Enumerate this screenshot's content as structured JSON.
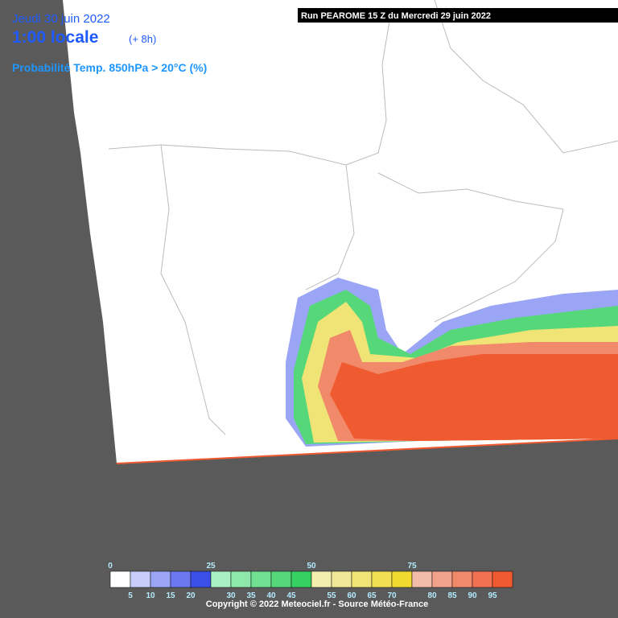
{
  "header": {
    "date": "Jeudi 30 juin 2022",
    "time": "1:00 locale",
    "lead": "(+ 8h)",
    "parameter": "Probabilité Temp. 850hPa > 20°C (%)",
    "run": "Run PEAROME 15 Z du Mercredi 29 juin 2022"
  },
  "legend": {
    "major_labels": [
      0,
      25,
      50,
      75
    ],
    "minor_labels": [
      5,
      10,
      15,
      20,
      30,
      35,
      40,
      45,
      55,
      60,
      65,
      70,
      80,
      85,
      90,
      95
    ],
    "colors": [
      "#ffffff",
      "#c8cdfa",
      "#9ba5f5",
      "#6c78f0",
      "#3c50e8",
      "#a8f0c4",
      "#8ee8aa",
      "#72e092",
      "#56d87a",
      "#36d062",
      "#f2eeb0",
      "#f0e898",
      "#f0e476",
      "#f0df52",
      "#f0da30",
      "#f2bcaa",
      "#f0a28a",
      "#f08a6a",
      "#f07252",
      "#f05a30"
    ]
  },
  "footer": {
    "copyright": "Copyright © 2022 Meteociel.fr - Source Météo-France"
  }
}
